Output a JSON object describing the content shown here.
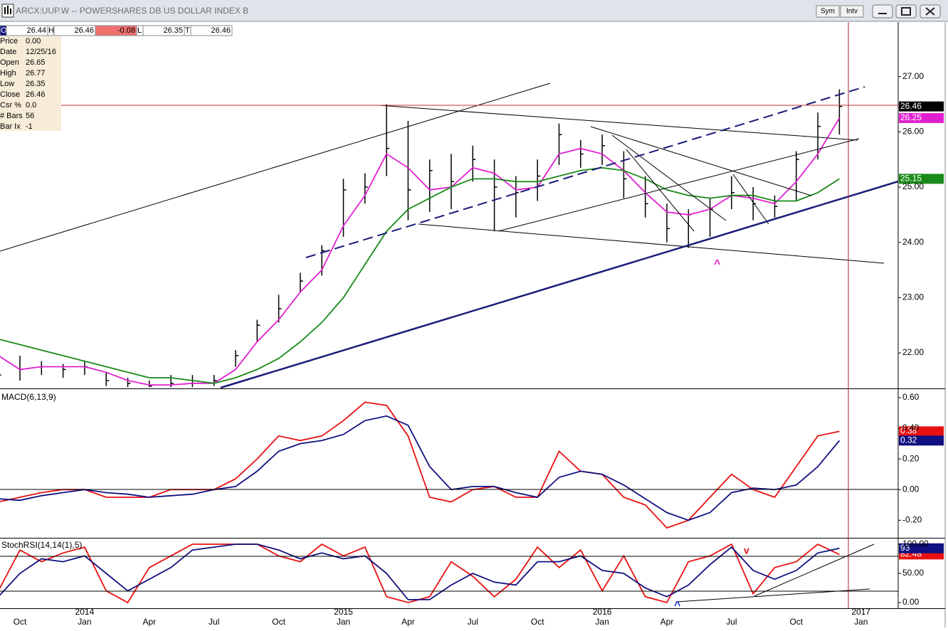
{
  "toolbar": {
    "buttons": [
      "Sym",
      "Intv"
    ]
  },
  "quote_bar": [
    {
      "label": "O",
      "value": "26.44"
    },
    {
      "label": "H",
      "value": "26.46"
    },
    {
      "value": "-0.08"
    },
    {
      "label": "L",
      "value": "26.35"
    },
    {
      "label": "T",
      "value": "26.46"
    }
  ],
  "info": [
    {
      "label": "Price",
      "value": "0.00"
    },
    {
      "label": "Date",
      "value": "12/25/16"
    },
    {
      "label": "Open",
      "value": "26.65"
    },
    {
      "label": "High",
      "value": "26.77"
    },
    {
      "label": "Low",
      "value": "26.35"
    },
    {
      "label": "Close",
      "value": "26.46"
    },
    {
      "label": "Csr %",
      "value": "0.0"
    },
    {
      "label": "# Bars",
      "value": "56"
    },
    {
      "label": "Bar Ix",
      "value": "-1"
    }
  ],
  "annotations": [
    "^",
    "v",
    "^"
  ],
  "chart_data": [
    {
      "type": "ohlc",
      "title": "ARCX:UUP.W -- POWERSHARES DB US DOLLAR INDEX B",
      "categories": [
        null,
        "Oct",
        null,
        null,
        "Jan",
        null,
        null,
        "Apr",
        null,
        null,
        "Jul",
        null,
        null,
        "Oct",
        null,
        null,
        "Jan",
        null,
        null,
        "Apr",
        null,
        null,
        "Jul",
        null,
        null,
        "Oct",
        null,
        null,
        "Jan",
        null,
        null,
        "Apr",
        null,
        null,
        "Jul",
        null,
        null,
        "Oct",
        null,
        null,
        "Jan"
      ],
      "years": [
        null,
        null,
        null,
        null,
        "2014",
        null,
        null,
        null,
        null,
        null,
        null,
        null,
        null,
        null,
        null,
        null,
        "2015",
        null,
        null,
        null,
        null,
        null,
        null,
        null,
        null,
        null,
        null,
        null,
        "2016",
        null,
        null,
        null,
        null,
        null,
        null,
        null,
        null,
        null,
        null,
        null,
        "2017"
      ],
      "high": [
        21.75,
        21.95,
        21.85,
        21.8,
        21.85,
        21.65,
        21.55,
        21.5,
        21.6,
        21.6,
        21.6,
        22.05,
        22.6,
        23.05,
        23.45,
        23.95,
        25.15,
        25.25,
        26.5,
        26.2,
        25.5,
        25.6,
        25.75,
        25.5,
        25.2,
        25.5,
        26.15,
        25.85,
        25.95,
        25.65,
        25.2,
        24.7,
        24.6,
        24.8,
        25.2,
        25.0,
        24.85,
        25.65,
        26.35,
        26.77,
        null
      ],
      "low": [
        21.45,
        21.5,
        21.6,
        21.55,
        21.6,
        21.4,
        21.38,
        21.38,
        21.38,
        21.38,
        21.4,
        21.75,
        22.2,
        22.55,
        23.1,
        23.4,
        24.1,
        24.7,
        25.2,
        24.4,
        24.55,
        24.6,
        25.1,
        24.2,
        24.45,
        24.75,
        25.4,
        25.35,
        25.4,
        24.8,
        24.45,
        24.0,
        23.9,
        24.1,
        24.6,
        24.4,
        24.45,
        24.75,
        25.5,
        25.95,
        null
      ],
      "close": [
        21.6,
        21.7,
        21.75,
        21.7,
        21.75,
        21.5,
        21.45,
        21.4,
        21.45,
        21.45,
        21.5,
        21.95,
        22.5,
        22.8,
        23.3,
        23.85,
        24.95,
        25.0,
        25.7,
        24.95,
        25.3,
        25.1,
        25.5,
        25.0,
        24.9,
        25.2,
        25.95,
        25.6,
        25.75,
        25.15,
        24.7,
        24.25,
        24.5,
        24.6,
        24.9,
        24.7,
        24.65,
        25.5,
        26.1,
        26.46,
        null
      ],
      "color": "#000000",
      "series": [
        {
          "color": "#e020d0",
          "values": [
            21.95,
            21.7,
            21.75,
            21.75,
            21.75,
            21.65,
            21.5,
            21.42,
            21.42,
            21.45,
            21.45,
            21.7,
            22.2,
            22.6,
            23.1,
            23.5,
            24.3,
            24.85,
            25.6,
            25.35,
            24.95,
            25.0,
            25.35,
            25.25,
            24.95,
            25.0,
            25.6,
            25.7,
            25.6,
            25.3,
            24.9,
            24.55,
            24.5,
            24.6,
            24.85,
            24.8,
            24.7,
            25.1,
            25.6,
            26.25,
            null
          ]
        },
        {
          "color": "#1a8a1a",
          "values": [
            22.25,
            22.15,
            22.05,
            21.95,
            21.85,
            21.75,
            21.65,
            21.55,
            21.55,
            21.5,
            21.45,
            21.55,
            21.7,
            21.9,
            22.2,
            22.55,
            23.0,
            23.6,
            24.2,
            24.6,
            24.8,
            25.0,
            25.15,
            25.15,
            25.1,
            25.1,
            25.2,
            25.3,
            25.35,
            25.3,
            25.15,
            24.95,
            24.85,
            24.8,
            24.85,
            24.85,
            24.75,
            24.75,
            24.9,
            25.15,
            null
          ]
        }
      ],
      "ylim": [
        21.37,
        28.0
      ],
      "yticks": [
        {
          "value": 22,
          "label": "22.00"
        },
        {
          "value": 23,
          "label": "23.00"
        },
        {
          "value": 24,
          "label": "24.00"
        },
        {
          "value": 25,
          "label": "25.00"
        },
        {
          "value": 26,
          "label": "26.00"
        },
        {
          "value": 27,
          "label": "27.00"
        }
      ]
    },
    {
      "type": "line",
      "title": "MACD(6,13,9)",
      "series": [
        {
          "color": "#e81010",
          "values": [
            -0.08,
            -0.05,
            -0.02,
            0.0,
            0.0,
            -0.05,
            -0.05,
            -0.05,
            0.0,
            0.0,
            0.0,
            0.07,
            0.2,
            0.35,
            0.32,
            0.35,
            0.45,
            0.57,
            0.55,
            0.35,
            -0.05,
            -0.08,
            0.0,
            0.02,
            -0.05,
            -0.05,
            0.25,
            0.12,
            0.1,
            -0.05,
            -0.1,
            -0.25,
            -0.2,
            -0.05,
            0.1,
            0.0,
            -0.05,
            0.15,
            0.35,
            0.38,
            null
          ]
        },
        {
          "color": "#101080",
          "values": [
            -0.06,
            -0.07,
            -0.04,
            -0.02,
            0.0,
            -0.02,
            -0.03,
            -0.05,
            -0.04,
            -0.03,
            0.0,
            0.02,
            0.12,
            0.25,
            0.3,
            0.32,
            0.36,
            0.45,
            0.48,
            0.42,
            0.15,
            0.0,
            0.02,
            0.02,
            -0.02,
            -0.05,
            0.08,
            0.12,
            0.1,
            0.03,
            -0.06,
            -0.15,
            -0.2,
            -0.15,
            -0.02,
            0.01,
            0.0,
            0.03,
            0.15,
            0.32,
            null
          ]
        }
      ],
      "ylim": [
        -0.31,
        0.651
      ],
      "yticks": [
        {
          "value": -0.2,
          "label": "-0.20"
        },
        {
          "value": 0,
          "label": "0.00"
        },
        {
          "value": 0.2,
          "label": "0.20"
        },
        {
          "value": 0.4,
          "label": "0.40"
        },
        {
          "value": 0.6,
          "label": "0.60"
        }
      ]
    },
    {
      "type": "line",
      "title": "StochRSI(14,14(1),5)",
      "series": [
        {
          "color": "#e81010",
          "values": [
            20,
            90,
            70,
            85,
            95,
            20,
            0,
            60,
            80,
            100,
            100,
            100,
            100,
            80,
            70,
            100,
            80,
            95,
            10,
            0,
            10,
            70,
            45,
            10,
            40,
            95,
            60,
            90,
            20,
            80,
            10,
            0,
            70,
            80,
            100,
            15,
            60,
            70,
            100,
            82.48,
            null
          ]
        },
        {
          "color": "#101080",
          "values": [
            10,
            50,
            75,
            70,
            80,
            50,
            20,
            40,
            60,
            90,
            95,
            100,
            100,
            90,
            75,
            85,
            75,
            80,
            50,
            5,
            5,
            30,
            50,
            35,
            30,
            70,
            70,
            80,
            55,
            50,
            25,
            10,
            30,
            65,
            95,
            55,
            40,
            55,
            85,
            93,
            null
          ]
        }
      ],
      "ylim": [
        -9.8,
        109.8
      ],
      "yticks": [
        {
          "value": 0,
          "label": "0.00"
        },
        {
          "value": 50,
          "label": "50.00"
        },
        {
          "value": 100,
          "label": "100.00"
        }
      ]
    }
  ]
}
